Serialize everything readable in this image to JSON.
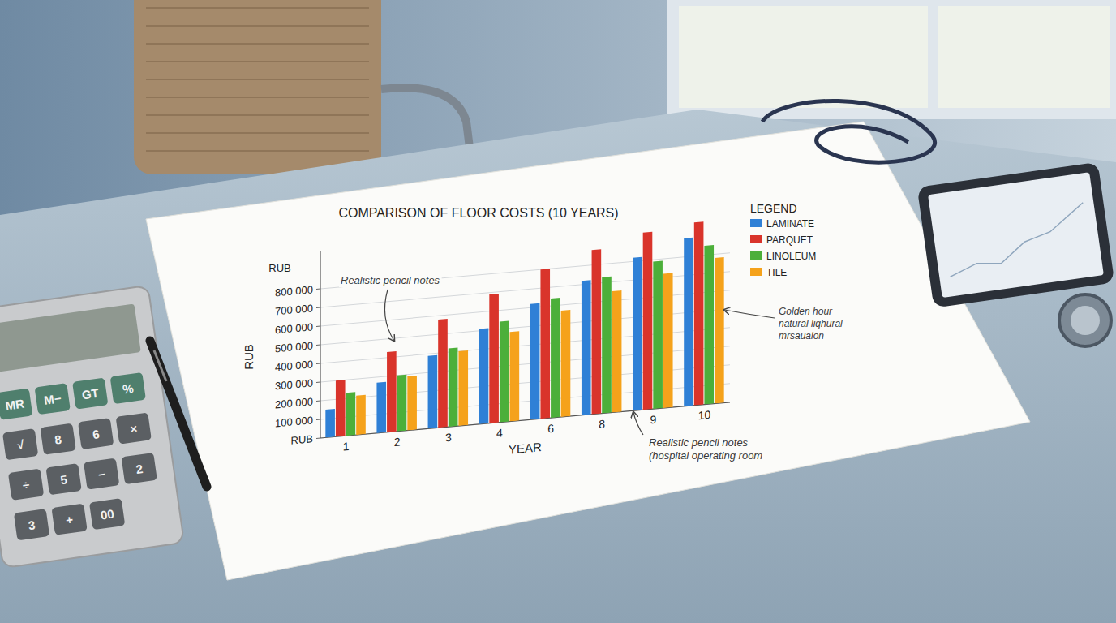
{
  "chart_data": {
    "type": "bar",
    "title": "COMPARISON OF FLOOR COSTS (10 YEARS)",
    "x_label": "YEAR",
    "y_label": "RUB",
    "categories": [
      "1",
      "2",
      "3",
      "4",
      "6",
      "8",
      "9",
      "10"
    ],
    "series": [
      {
        "name": "LAMINATE",
        "color": "#2f80d6",
        "values": [
          150000,
          270000,
          390000,
          510000,
          620000,
          720000,
          820000,
          900000
        ]
      },
      {
        "name": "PARQUET",
        "color": "#d9342b",
        "values": [
          300000,
          430000,
          580000,
          690000,
          800000,
          880000,
          950000,
          980000
        ]
      },
      {
        "name": "LINOLEUM",
        "color": "#4caf3a",
        "values": [
          230000,
          300000,
          420000,
          540000,
          640000,
          730000,
          790000,
          850000
        ]
      },
      {
        "name": "TILE",
        "color": "#f5a21b",
        "values": [
          210000,
          290000,
          400000,
          480000,
          570000,
          650000,
          720000,
          780000
        ]
      }
    ],
    "ylim": [
      0,
      1000000
    ],
    "yticks": [
      {
        "value": 0,
        "label": "RUB"
      },
      {
        "value": 100000,
        "label": "100 000"
      },
      {
        "value": 200000,
        "label": "200 000"
      },
      {
        "value": 300000,
        "label": "300 000"
      },
      {
        "value": 400000,
        "label": "400 000"
      },
      {
        "value": 500000,
        "label": "500 000"
      },
      {
        "value": 600000,
        "label": "600 000"
      },
      {
        "value": 700000,
        "label": "700 000"
      },
      {
        "value": 800000,
        "label": "800 000"
      }
    ],
    "grid": true,
    "legend": "top-right",
    "legend_title": "LEGEND",
    "annotations": [
      [
        "RUB"
      ],
      [
        "Realistic pencil notes"
      ],
      [
        "Golden hour",
        "natural liqhural",
        "mrsauaion"
      ],
      [
        "Realistic pencil notes",
        "(hospital operating room"
      ]
    ]
  },
  "calculator_keys": [
    "MR",
    "M−",
    "GT",
    "%",
    "√",
    "8",
    "6",
    "×",
    "÷",
    "5",
    "−",
    "2",
    "3",
    "+",
    "00"
  ]
}
